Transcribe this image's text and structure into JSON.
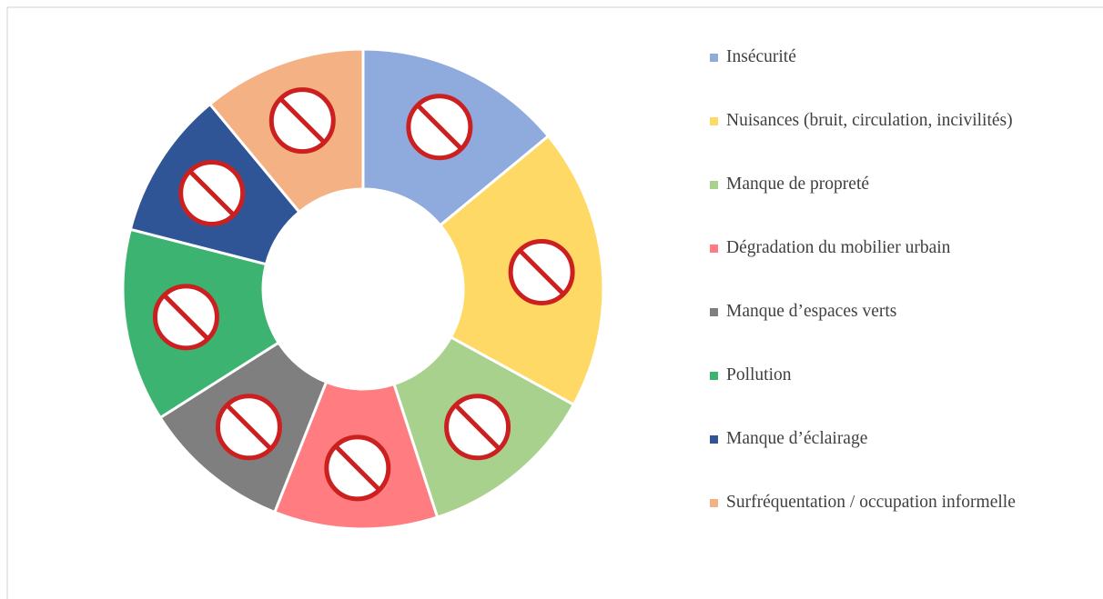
{
  "chart_data": {
    "type": "donut",
    "categories": [
      "Insécurité",
      "Nuisances (bruit, circulation, incivilités)",
      "Manque de propreté",
      "Dégradation du mobilier urbain",
      "Manque d’espaces verts",
      "Pollution",
      "Manque d’éclairage",
      "Surfréquentation / occupation informelle"
    ],
    "values": [
      14,
      19,
      12,
      11,
      10,
      13,
      10,
      11
    ],
    "colors": [
      "#8faadc",
      "#ffd966",
      "#a9d18e",
      "#ff7c80",
      "#7f7f7f",
      "#3cb371",
      "#2f5597",
      "#f4b183"
    ],
    "legend": "right"
  }
}
